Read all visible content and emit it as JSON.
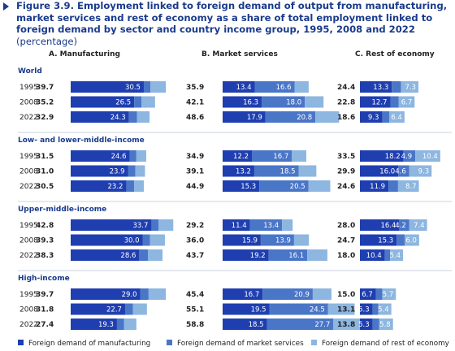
{
  "figure": {
    "title": "Figure 3.9. Employment linked to foreign demand of output from manufacturing, market services and rest of economy as a share of total employment linked to foreign demand by sector and country income group, 1995, 2008 and 2022",
    "unit": "(percentage)"
  },
  "colors": {
    "manufacturing": "#1f3fb0",
    "market_services": "#4a76c8",
    "rest_of_economy": "#8db6e0",
    "group_label": "#1a3b8c"
  },
  "chart_data": {
    "type": "bar",
    "orientation": "horizontal",
    "stacked": true,
    "panels": [
      "A. Manufacturing",
      "B. Market services",
      "C. Rest of economy"
    ],
    "panel_keys": [
      "manufacturing",
      "market_services",
      "rest_of_economy"
    ],
    "series": [
      {
        "name": "Foreign demand of manufacturing",
        "key": "manufacturing"
      },
      {
        "name": "Foreign demand of market services",
        "key": "market_services"
      },
      {
        "name": "Foreign demand of rest of economy",
        "key": "rest_of_economy"
      }
    ],
    "groups": [
      {
        "name": "World",
        "rows": [
          {
            "year": "1995",
            "manufacturing": {
              "total": "39.7",
              "values": [
                30.5,
                2.8,
                6.4
              ]
            },
            "market_services": {
              "total": "35.9",
              "values": [
                13.4,
                16.6,
                5.9
              ]
            },
            "rest_of_economy": {
              "total": "24.4",
              "values": [
                13.3,
                3.8,
                7.3
              ]
            }
          },
          {
            "year": "2008",
            "manufacturing": {
              "total": "35.2",
              "values": [
                26.5,
                3.0,
                5.7
              ]
            },
            "market_services": {
              "total": "42.1",
              "values": [
                16.3,
                18.0,
                7.8
              ]
            },
            "rest_of_economy": {
              "total": "22.8",
              "values": [
                12.7,
                3.4,
                6.7
              ]
            }
          },
          {
            "year": "2022",
            "manufacturing": {
              "total": "32.9",
              "values": [
                24.3,
                3.4,
                5.2
              ]
            },
            "market_services": {
              "total": "48.6",
              "values": [
                17.9,
                20.8,
                9.9
              ]
            },
            "rest_of_economy": {
              "total": "18.6",
              "values": [
                9.3,
                2.9,
                6.4
              ]
            }
          }
        ]
      },
      {
        "name": "Low- and lower-middle-income",
        "rows": [
          {
            "year": "1995",
            "manufacturing": {
              "total": "31.5",
              "values": [
                24.6,
                2.8,
                4.1
              ]
            },
            "market_services": {
              "total": "34.9",
              "values": [
                12.2,
                16.7,
                6.0
              ]
            },
            "rest_of_economy": {
              "total": "33.5",
              "values": [
                18.2,
                4.9,
                10.4
              ]
            }
          },
          {
            "year": "2008",
            "manufacturing": {
              "total": "31.0",
              "values": [
                23.9,
                3.1,
                4.0
              ]
            },
            "market_services": {
              "total": "39.1",
              "values": [
                13.2,
                18.5,
                7.4
              ]
            },
            "rest_of_economy": {
              "total": "29.9",
              "values": [
                16.0,
                4.6,
                9.3
              ]
            }
          },
          {
            "year": "2022",
            "manufacturing": {
              "total": "30.5",
              "values": [
                23.2,
                3.3,
                4.0
              ]
            },
            "market_services": {
              "total": "44.9",
              "values": [
                15.3,
                20.5,
                9.1
              ]
            },
            "rest_of_economy": {
              "total": "24.6",
              "values": [
                11.9,
                4.0,
                8.7
              ]
            }
          }
        ]
      },
      {
        "name": "Upper-middle-income",
        "rows": [
          {
            "year": "1995",
            "manufacturing": {
              "total": "42.8",
              "values": [
                33.7,
                3.0,
                6.1
              ]
            },
            "market_services": {
              "total": "29.2",
              "values": [
                11.4,
                13.4,
                4.4
              ]
            },
            "rest_of_economy": {
              "total": "28.0",
              "values": [
                16.4,
                4.2,
                7.4
              ]
            }
          },
          {
            "year": "2008",
            "manufacturing": {
              "total": "39.3",
              "values": [
                30.0,
                3.1,
                6.2
              ]
            },
            "market_services": {
              "total": "36.0",
              "values": [
                15.9,
                13.9,
                6.2
              ]
            },
            "rest_of_economy": {
              "total": "24.7",
              "values": [
                15.3,
                3.4,
                6.0
              ]
            }
          },
          {
            "year": "2022",
            "manufacturing": {
              "total": "38.3",
              "values": [
                28.6,
                3.6,
                6.1
              ]
            },
            "market_services": {
              "total": "43.7",
              "values": [
                19.2,
                16.1,
                8.4
              ]
            },
            "rest_of_economy": {
              "total": "18.0",
              "values": [
                10.4,
                2.2,
                5.4
              ]
            }
          }
        ]
      },
      {
        "name": "High-income",
        "rows": [
          {
            "year": "1995",
            "manufacturing": {
              "total": "39.7",
              "values": [
                29.0,
                3.5,
                7.2
              ]
            },
            "market_services": {
              "total": "45.4",
              "values": [
                16.7,
                20.9,
                7.8
              ]
            },
            "rest_of_economy": {
              "total": "15.0",
              "values": [
                6.7,
                2.6,
                5.7
              ]
            }
          },
          {
            "year": "2008",
            "manufacturing": {
              "total": "31.8",
              "values": [
                22.7,
                3.3,
                5.8
              ]
            },
            "market_services": {
              "total": "55.1",
              "values": [
                19.5,
                24.5,
                11.1
              ]
            },
            "rest_of_economy": {
              "total": "13.1",
              "values": [
                5.3,
                2.4,
                5.4
              ]
            }
          },
          {
            "year": "2022",
            "manufacturing": {
              "total": "27.4",
              "values": [
                19.3,
                3.0,
                5.1
              ]
            },
            "market_services": {
              "total": "58.8",
              "values": [
                18.5,
                27.7,
                12.6
              ]
            },
            "rest_of_economy": {
              "total": "13.8",
              "values": [
                5.3,
                2.7,
                5.8
              ]
            }
          }
        ]
      }
    ],
    "legend": {
      "position": "bottom"
    },
    "grid": false
  }
}
